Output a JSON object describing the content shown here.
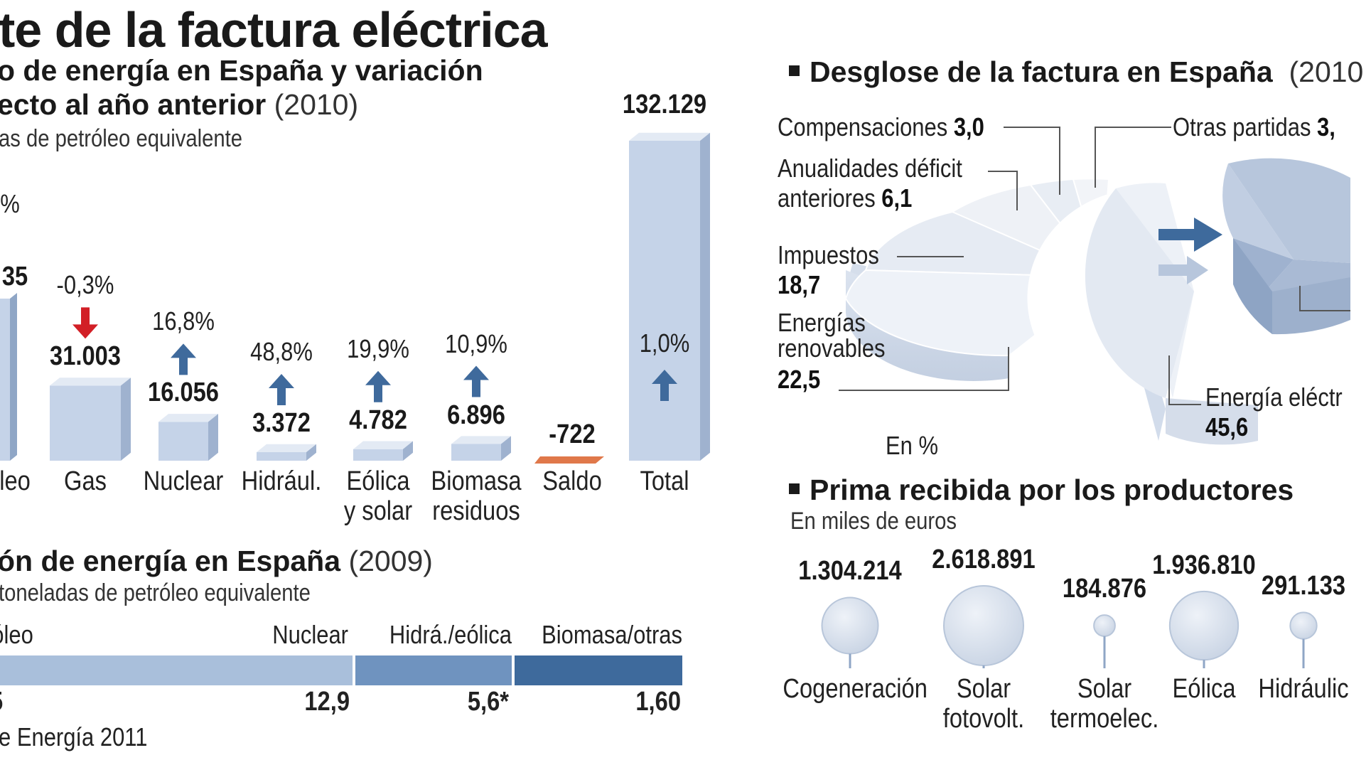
{
  "title": "te de la factura eléctrica",
  "consumo": {
    "heading_line1": "o de energía en España y variación",
    "heading_line2": "ecto al año anterior",
    "year": "(2010)",
    "unit": "as de petróleo equivalente",
    "partial_pct": "%",
    "partial_value": "35",
    "partial_category": "leo"
  },
  "chart_data": [
    {
      "type": "bar",
      "categories": [
        "Gas",
        "Nuclear",
        "Hidrául.",
        "Eólica y solar",
        "Biomasa residuos",
        "Saldo",
        "Total"
      ],
      "category_lines": [
        [
          "Gas"
        ],
        [
          "Nuclear"
        ],
        [
          "Hidrául."
        ],
        [
          "Eólica",
          "y solar"
        ],
        [
          "Biomasa",
          "residuos"
        ],
        [
          "Saldo"
        ],
        [
          "Total"
        ]
      ],
      "values": [
        31003,
        16056,
        3372,
        4782,
        6896,
        -722,
        132129
      ],
      "value_labels": [
        "31.003",
        "16.056",
        "3.372",
        "4.782",
        "6.896",
        "-722",
        "132.129"
      ],
      "variation": [
        "-0,3%",
        "16,8%",
        "48,8%",
        "19,9%",
        "10,9%",
        "",
        "1,0%"
      ],
      "direction": [
        "down",
        "up",
        "up",
        "up",
        "up",
        "",
        "up"
      ],
      "colors": {
        "bar": "#c5d3e8",
        "negative": "#e0784a",
        "up_arrow": "#3f6a9c",
        "down_arrow": "#d21f26"
      }
    },
    {
      "type": "bar",
      "orientation": "horizontal-stacked",
      "categories": [
        "róleo",
        "Nuclear",
        "Hidrá./eólica",
        "Biomasa/otras"
      ],
      "value_labels": [
        "5",
        "12,9",
        "5,6*",
        "1,60"
      ],
      "colors": [
        "#a9bfdb",
        "#a9bfdb",
        "#6f93bf",
        "#3e6a9c"
      ]
    },
    {
      "type": "pie",
      "title": "Desglose de la factura en España",
      "year": "(2010",
      "unit": "En %",
      "slices": [
        {
          "label": "Compensaciones",
          "value": 3.0,
          "value_label": "3,0"
        },
        {
          "label": "Otras partidas",
          "value": 3.0,
          "value_label": "3,"
        },
        {
          "label": "Anualidades déficit anteriores",
          "value": 6.1,
          "value_label": "6,1",
          "lines": [
            "Anualidades déficit",
            "anteriores"
          ]
        },
        {
          "label": "Impuestos",
          "value": 18.7,
          "value_label": "18,7"
        },
        {
          "label": "Energías renovables",
          "value": 22.5,
          "value_label": "22,5",
          "lines": [
            "Energías",
            "renovables"
          ]
        },
        {
          "label": "Energía eléctr",
          "value": 45.6,
          "value_label": "45,6"
        }
      ]
    },
    {
      "type": "scatter",
      "subtype": "bubble",
      "title": "Prima recibida por los productores",
      "unit": "En miles de euros",
      "categories": [
        "Cogeneración",
        "Solar fotovolt.",
        "Solar termoelec.",
        "Eólica",
        "Hidráulic"
      ],
      "category_lines": [
        [
          "Cogeneración"
        ],
        [
          "Solar",
          "fotovolt."
        ],
        [
          "Solar",
          "termoelec."
        ],
        [
          "Eólica"
        ],
        [
          "Hidráulic"
        ]
      ],
      "values": [
        1304214,
        2618891,
        184876,
        1936810,
        291133
      ],
      "value_labels": [
        "1.304.214",
        "2.618.891",
        "184.876",
        "1.936.810",
        "291.133"
      ]
    }
  ],
  "produccion": {
    "heading": "ón de energía en España",
    "year": "(2009)",
    "unit": "toneladas de petróleo equivalente"
  },
  "source": "e Energía 2011"
}
